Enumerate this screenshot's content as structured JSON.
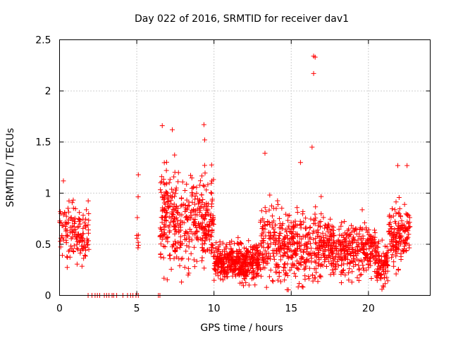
{
  "chart_data": {
    "type": "scatter",
    "title": "Day 022 of 2016, SRMTID for receiver dav1",
    "xlabel": "GPS time / hours",
    "ylabel": "SRMTID / TECUs",
    "xlim": [
      0,
      24
    ],
    "ylim": [
      0,
      2.5
    ],
    "xticks": [
      0,
      5,
      10,
      15,
      20
    ],
    "xtick_labels": [
      "0",
      "5",
      "10",
      "15",
      "20"
    ],
    "yticks": [
      0,
      0.5,
      1,
      1.5,
      2,
      2.5
    ],
    "ytick_labels": [
      "0",
      "0.5",
      "1",
      "1.5",
      "2",
      "2.5"
    ],
    "grid": true,
    "marker": "+",
    "color": "#ff0000",
    "zero_points_x": [
      1.85,
      2.1,
      2.3,
      2.45,
      2.6,
      2.9,
      3.05,
      3.2,
      3.4,
      3.5,
      3.7,
      4.1,
      4.4,
      4.6,
      4.75,
      4.95,
      5.1,
      6.4,
      6.5
    ],
    "segments": [
      {
        "x0": 0.0,
        "x1": 1.9,
        "mean": 0.6,
        "sd": 0.2,
        "n": 140,
        "min": 0.12,
        "max": 1.15
      },
      {
        "x0": 5.0,
        "x1": 5.15,
        "mean": 0.75,
        "sd": 0.3,
        "n": 8,
        "min": 0.45,
        "max": 1.2
      },
      {
        "x0": 6.5,
        "x1": 10.0,
        "mean": 0.72,
        "sd": 0.32,
        "n": 420,
        "min": 0.1,
        "max": 1.68
      },
      {
        "x0": 10.0,
        "x1": 13.0,
        "mean": 0.33,
        "sd": 0.13,
        "n": 420,
        "min": 0.05,
        "max": 0.9
      },
      {
        "x0": 13.0,
        "x1": 17.0,
        "mean": 0.5,
        "sd": 0.25,
        "n": 420,
        "min": 0.05,
        "max": 1.45
      },
      {
        "x0": 17.0,
        "x1": 20.5,
        "mean": 0.45,
        "sd": 0.18,
        "n": 380,
        "min": 0.1,
        "max": 1.0
      },
      {
        "x0": 20.5,
        "x1": 21.3,
        "mean": 0.3,
        "sd": 0.15,
        "n": 90,
        "min": 0.02,
        "max": 0.95
      },
      {
        "x0": 21.3,
        "x1": 22.7,
        "mean": 0.6,
        "sd": 0.22,
        "n": 150,
        "min": 0.05,
        "max": 1.3
      }
    ],
    "notable_points": [
      {
        "x": 16.45,
        "y": 2.34
      },
      {
        "x": 16.55,
        "y": 2.33
      },
      {
        "x": 16.45,
        "y": 2.17
      },
      {
        "x": 6.65,
        "y": 1.66
      },
      {
        "x": 7.3,
        "y": 1.62
      },
      {
        "x": 9.35,
        "y": 1.67
      },
      {
        "x": 9.4,
        "y": 1.52
      },
      {
        "x": 16.35,
        "y": 1.45
      },
      {
        "x": 13.3,
        "y": 1.39
      },
      {
        "x": 15.6,
        "y": 1.3
      },
      {
        "x": 21.9,
        "y": 1.27
      },
      {
        "x": 22.5,
        "y": 1.27
      },
      {
        "x": 0.25,
        "y": 1.12
      },
      {
        "x": 5.1,
        "y": 1.18
      }
    ]
  }
}
